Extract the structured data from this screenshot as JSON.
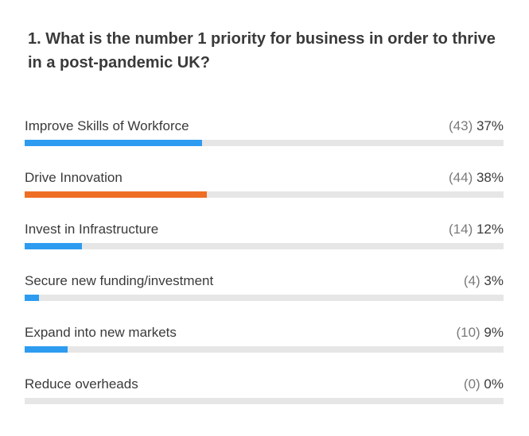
{
  "question": "1. What is the number 1 priority for business in order to thrive in a post-pandemic UK?",
  "colors": {
    "default_bar": "#2d9cf0",
    "leading_bar": "#ef6e25",
    "track": "#e6e6e6"
  },
  "options": [
    {
      "label": "Improve Skills of Workforce",
      "count": "(43)",
      "percent": "37%",
      "fraction": 0.37,
      "bar_color": "#2d9cf0"
    },
    {
      "label": "Drive Innovation",
      "count": "(44)",
      "percent": "38%",
      "fraction": 0.38,
      "bar_color": "#ef6e25"
    },
    {
      "label": "Invest in Infrastructure",
      "count": "(14)",
      "percent": "12%",
      "fraction": 0.12,
      "bar_color": "#2d9cf0"
    },
    {
      "label": "Secure new funding/investment",
      "count": "(4)",
      "percent": "3%",
      "fraction": 0.03,
      "bar_color": "#2d9cf0"
    },
    {
      "label": "Expand into new markets",
      "count": "(10)",
      "percent": "9%",
      "fraction": 0.09,
      "bar_color": "#2d9cf0"
    },
    {
      "label": "Reduce overheads",
      "count": "(0)",
      "percent": "0%",
      "fraction": 0,
      "bar_color": "#2d9cf0"
    }
  ]
}
